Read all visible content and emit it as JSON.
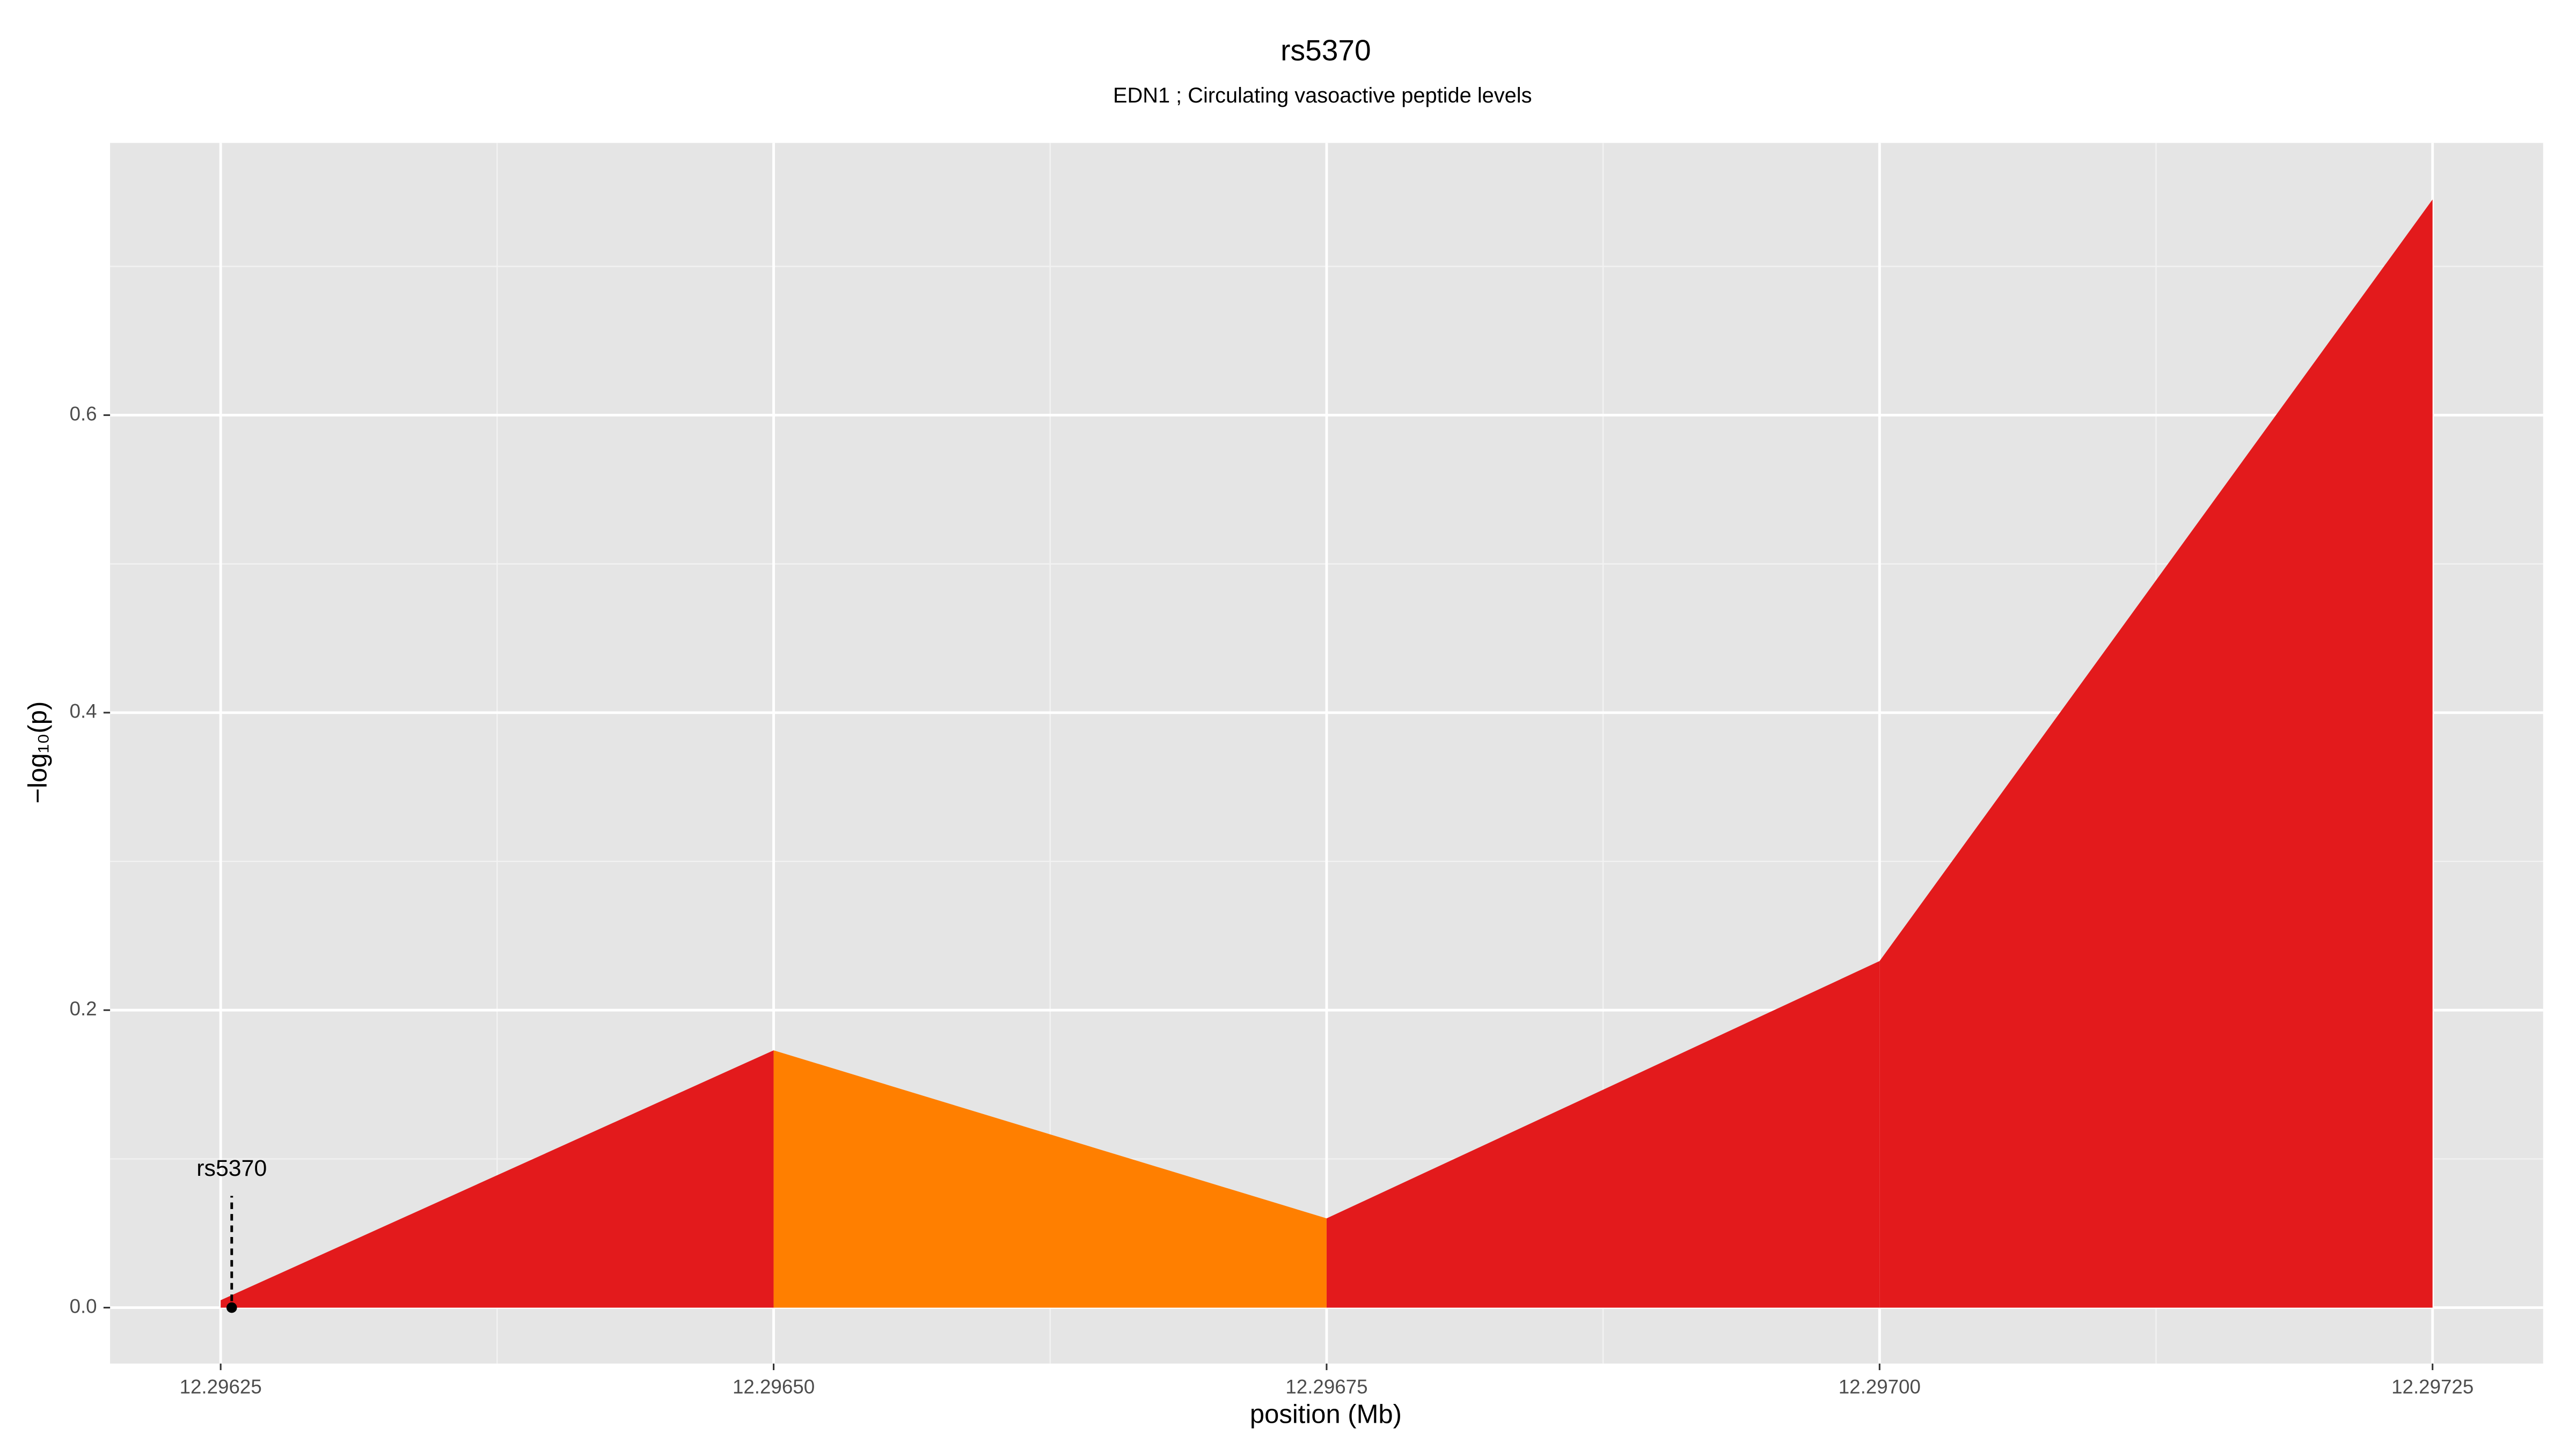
{
  "chart_data": {
    "type": "area",
    "title": "rs5370",
    "subtitle": "EDN1 ; Circulating vasoactive peptide levels",
    "xlabel": "position (Mb)",
    "ylabel": "−log₁₀(p)",
    "x": [
      12.29625,
      12.2965,
      12.29675,
      12.297,
      12.29725
    ],
    "values": [
      0.005,
      0.173,
      0.06,
      0.233,
      0.745
    ],
    "segment_colors": [
      "#e31a1c",
      "#ff7f00",
      "#e31a1c",
      "#e31a1c"
    ],
    "xlim": [
      12.2962,
      12.2973
    ],
    "ylim": [
      -0.0376,
      0.783
    ],
    "xticks": [
      {
        "value": 12.29625,
        "label": "12.29625"
      },
      {
        "value": 12.2965,
        "label": "12.29650"
      },
      {
        "value": 12.29675,
        "label": "12.29675"
      },
      {
        "value": 12.297,
        "label": "12.29700"
      },
      {
        "value": 12.29725,
        "label": "12.29725"
      }
    ],
    "yticks": [
      {
        "value": 0,
        "label": "0.0"
      },
      {
        "value": 0.2,
        "label": "0.2"
      },
      {
        "value": 0.4,
        "label": "0.4"
      },
      {
        "value": 0.6,
        "label": "0.6"
      }
    ],
    "grid": true,
    "annotation": {
      "label": "rs5370",
      "x": 12.296255,
      "y": 0
    }
  }
}
